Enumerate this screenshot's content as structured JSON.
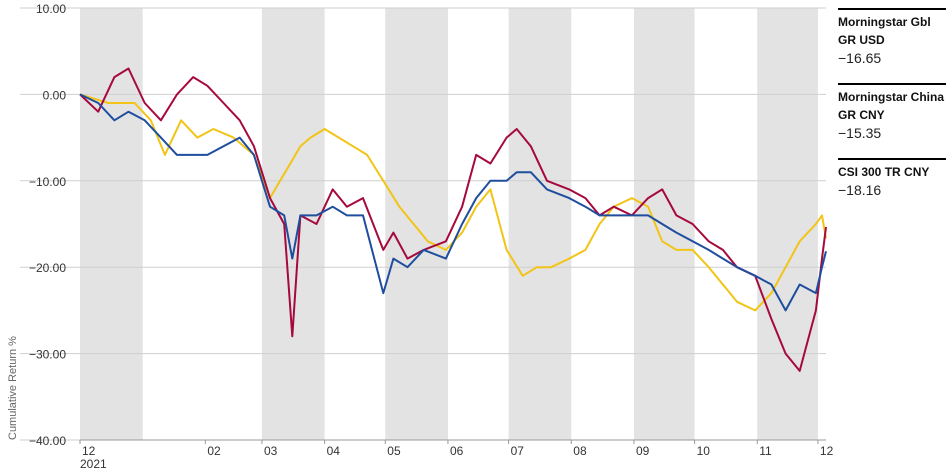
{
  "chart_data": {
    "type": "line",
    "title": "",
    "xlabel": "",
    "ylabel": "Cumulative Return %",
    "ylim": [
      -40,
      10
    ],
    "yticks": [
      10,
      0,
      -10,
      -20,
      -30,
      -40
    ],
    "ytick_labels": [
      "10.00",
      "0.00",
      "−10.00",
      "−20.00",
      "−30.00",
      "−40.00"
    ],
    "x_tick_labels": [
      "12",
      "02",
      "03",
      "04",
      "05",
      "06",
      "07",
      "08",
      "09",
      "10",
      "11",
      "12"
    ],
    "x_tick_dates": [
      "2020-12-01",
      "2021-02-01",
      "2021-03-01",
      "2021-04-01",
      "2021-05-01",
      "2021-06-01",
      "2021-07-01",
      "2021-08-01",
      "2021-09-01",
      "2021-10-01",
      "2021-11-01",
      "2021-12-01"
    ],
    "year_label": "2021",
    "x_range": [
      "2020-12-01",
      "2021-12-05"
    ],
    "shaded_months": [
      "2020-12",
      "2021-03",
      "2021-05",
      "2021-07",
      "2021-09",
      "2021-11"
    ],
    "grid": "horizontal",
    "legend_position": "right",
    "series": [
      {
        "name": "Morningstar Gbl GR USD",
        "value_label": "−16.65",
        "color": "#F2C416",
        "points": [
          [
            "2020-12-01",
            0
          ],
          [
            "2020-12-15",
            -1
          ],
          [
            "2020-12-28",
            -1
          ],
          [
            "2021-01-05",
            -3
          ],
          [
            "2021-01-12",
            -7
          ],
          [
            "2021-01-20",
            -3
          ],
          [
            "2021-01-28",
            -5
          ],
          [
            "2021-02-05",
            -4
          ],
          [
            "2021-02-15",
            -5
          ],
          [
            "2021-02-25",
            -7
          ],
          [
            "2021-03-05",
            -12
          ],
          [
            "2021-03-10",
            -10
          ],
          [
            "2021-03-15",
            -8
          ],
          [
            "2021-03-20",
            -6
          ],
          [
            "2021-03-25",
            -5
          ],
          [
            "2021-04-01",
            -4
          ],
          [
            "2021-04-08",
            -5
          ],
          [
            "2021-04-15",
            -6
          ],
          [
            "2021-04-22",
            -7
          ],
          [
            "2021-04-30",
            -10
          ],
          [
            "2021-05-08",
            -13
          ],
          [
            "2021-05-15",
            -15
          ],
          [
            "2021-05-22",
            -17
          ],
          [
            "2021-05-31",
            -18
          ],
          [
            "2021-06-08",
            -16
          ],
          [
            "2021-06-15",
            -13
          ],
          [
            "2021-06-22",
            -11
          ],
          [
            "2021-06-30",
            -18
          ],
          [
            "2021-07-08",
            -21
          ],
          [
            "2021-07-15",
            -20
          ],
          [
            "2021-07-22",
            -20
          ],
          [
            "2021-07-31",
            -19
          ],
          [
            "2021-08-08",
            -18
          ],
          [
            "2021-08-15",
            -15
          ],
          [
            "2021-08-22",
            -13
          ],
          [
            "2021-08-31",
            -12
          ],
          [
            "2021-09-08",
            -13
          ],
          [
            "2021-09-15",
            -17
          ],
          [
            "2021-09-22",
            -18
          ],
          [
            "2021-09-30",
            -18
          ],
          [
            "2021-10-08",
            -20
          ],
          [
            "2021-10-15",
            -22
          ],
          [
            "2021-10-22",
            -24
          ],
          [
            "2021-10-31",
            -25
          ],
          [
            "2021-11-08",
            -23
          ],
          [
            "2021-11-15",
            -20
          ],
          [
            "2021-11-22",
            -17
          ],
          [
            "2021-11-30",
            -15
          ],
          [
            "2021-12-03",
            -14
          ],
          [
            "2021-12-05",
            -16.65
          ]
        ]
      },
      {
        "name": "Morningstar China GR CNY",
        "value_label": "−15.35",
        "color": "#A6093D",
        "points": [
          [
            "2020-12-01",
            0
          ],
          [
            "2020-12-10",
            -2
          ],
          [
            "2020-12-18",
            2
          ],
          [
            "2020-12-25",
            3
          ],
          [
            "2021-01-02",
            -1
          ],
          [
            "2021-01-10",
            -3
          ],
          [
            "2021-01-18",
            0
          ],
          [
            "2021-01-26",
            2
          ],
          [
            "2021-02-02",
            1
          ],
          [
            "2021-02-10",
            -1
          ],
          [
            "2021-02-18",
            -3
          ],
          [
            "2021-02-25",
            -6
          ],
          [
            "2021-03-05",
            -12
          ],
          [
            "2021-03-12",
            -15
          ],
          [
            "2021-03-16",
            -28
          ],
          [
            "2021-03-20",
            -14
          ],
          [
            "2021-03-28",
            -15
          ],
          [
            "2021-04-05",
            -11
          ],
          [
            "2021-04-12",
            -13
          ],
          [
            "2021-04-20",
            -12
          ],
          [
            "2021-04-30",
            -18
          ],
          [
            "2021-05-05",
            -16
          ],
          [
            "2021-05-12",
            -19
          ],
          [
            "2021-05-20",
            -18
          ],
          [
            "2021-05-31",
            -17
          ],
          [
            "2021-06-08",
            -13
          ],
          [
            "2021-06-15",
            -7
          ],
          [
            "2021-06-22",
            -8
          ],
          [
            "2021-06-30",
            -5
          ],
          [
            "2021-07-05",
            -4
          ],
          [
            "2021-07-12",
            -6
          ],
          [
            "2021-07-20",
            -10
          ],
          [
            "2021-07-31",
            -11
          ],
          [
            "2021-08-08",
            -12
          ],
          [
            "2021-08-15",
            -14
          ],
          [
            "2021-08-22",
            -13
          ],
          [
            "2021-08-31",
            -14
          ],
          [
            "2021-09-08",
            -12
          ],
          [
            "2021-09-15",
            -11
          ],
          [
            "2021-09-22",
            -14
          ],
          [
            "2021-09-30",
            -15
          ],
          [
            "2021-10-08",
            -17
          ],
          [
            "2021-10-15",
            -18
          ],
          [
            "2021-10-22",
            -20
          ],
          [
            "2021-10-31",
            -21
          ],
          [
            "2021-11-08",
            -26
          ],
          [
            "2021-11-15",
            -30
          ],
          [
            "2021-11-22",
            -32
          ],
          [
            "2021-11-30",
            -25
          ],
          [
            "2021-12-03",
            -19
          ],
          [
            "2021-12-05",
            -15.35
          ]
        ]
      },
      {
        "name": "CSI 300 TR CNY",
        "value_label": "−18.16",
        "color": "#1F4E9E",
        "points": [
          [
            "2020-12-01",
            0
          ],
          [
            "2020-12-10",
            -1
          ],
          [
            "2020-12-18",
            -3
          ],
          [
            "2020-12-25",
            -2
          ],
          [
            "2021-01-02",
            -3
          ],
          [
            "2021-01-10",
            -5
          ],
          [
            "2021-01-18",
            -7
          ],
          [
            "2021-01-26",
            -7
          ],
          [
            "2021-02-02",
            -7
          ],
          [
            "2021-02-10",
            -6
          ],
          [
            "2021-02-18",
            -5
          ],
          [
            "2021-02-25",
            -7
          ],
          [
            "2021-03-05",
            -13
          ],
          [
            "2021-03-12",
            -14
          ],
          [
            "2021-03-16",
            -19
          ],
          [
            "2021-03-20",
            -14
          ],
          [
            "2021-03-28",
            -14
          ],
          [
            "2021-04-05",
            -13
          ],
          [
            "2021-04-12",
            -14
          ],
          [
            "2021-04-20",
            -14
          ],
          [
            "2021-04-30",
            -23
          ],
          [
            "2021-05-05",
            -19
          ],
          [
            "2021-05-12",
            -20
          ],
          [
            "2021-05-20",
            -18
          ],
          [
            "2021-05-31",
            -19
          ],
          [
            "2021-06-08",
            -15
          ],
          [
            "2021-06-15",
            -12
          ],
          [
            "2021-06-22",
            -10
          ],
          [
            "2021-06-30",
            -10
          ],
          [
            "2021-07-05",
            -9
          ],
          [
            "2021-07-12",
            -9
          ],
          [
            "2021-07-20",
            -11
          ],
          [
            "2021-07-31",
            -12
          ],
          [
            "2021-08-08",
            -13
          ],
          [
            "2021-08-15",
            -14
          ],
          [
            "2021-08-22",
            -14
          ],
          [
            "2021-08-31",
            -14
          ],
          [
            "2021-09-08",
            -14
          ],
          [
            "2021-09-15",
            -15
          ],
          [
            "2021-09-22",
            -16
          ],
          [
            "2021-09-30",
            -17
          ],
          [
            "2021-10-08",
            -18
          ],
          [
            "2021-10-15",
            -19
          ],
          [
            "2021-10-22",
            -20
          ],
          [
            "2021-10-31",
            -21
          ],
          [
            "2021-11-08",
            -22
          ],
          [
            "2021-11-15",
            -25
          ],
          [
            "2021-11-22",
            -22
          ],
          [
            "2021-11-30",
            -23
          ],
          [
            "2021-12-03",
            -20
          ],
          [
            "2021-12-05",
            -18.16
          ]
        ]
      }
    ]
  }
}
